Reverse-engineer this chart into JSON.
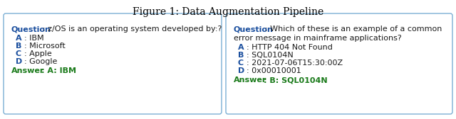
{
  "title": "Figure 1: Data Augmentation Pipeline",
  "title_fontsize": 10,
  "title_color": "#000000",
  "box1": {
    "question_label": "Question",
    "question_rest": ": z/OS is an operating system developed by:?",
    "options": [
      {
        "label": "A",
        "rest": ": IBM"
      },
      {
        "label": "B",
        "rest": ": Microsoft"
      },
      {
        "label": "C",
        "rest": ": Apple"
      },
      {
        "label": "D",
        "rest": ": Google"
      }
    ],
    "answer_label": "Answer",
    "answer_rest": ": ",
    "answer_bold": "A: IBM"
  },
  "box2": {
    "question_label": "Question",
    "question_rest": ": Which of these is an example of a common",
    "question_rest2": "error message in mainframe applications?",
    "options": [
      {
        "label": "A",
        "rest": ": HTTP 404 Not Found"
      },
      {
        "label": "B",
        "rest": ": SQL0104N"
      },
      {
        "label": "C",
        "rest": ": 2021-07-06T15:30:00Z"
      },
      {
        "label": "D",
        "rest": ": 0x00010001"
      }
    ],
    "answer_label": "Answer",
    "answer_rest": ": ",
    "answer_bold": "B: SQL0104N"
  },
  "label_color": "#1b4f9e",
  "text_color": "#1a1a1a",
  "answer_color": "#1a7a1a",
  "box_edge_color": "#7bafd4",
  "background_color": "#ffffff",
  "font_size": 8.0
}
